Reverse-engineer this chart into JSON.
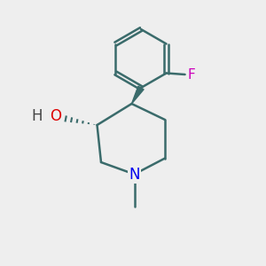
{
  "background_color": "#eeeeee",
  "bond_color": "#3a6b6b",
  "bond_width": 1.8,
  "atom_colors": {
    "N": "#0000ee",
    "O": "#dd0000",
    "F": "#cc00bb",
    "H": "#444444"
  },
  "font_size_atom": 11,
  "fig_size": [
    3.0,
    3.0
  ],
  "dpi": 100
}
